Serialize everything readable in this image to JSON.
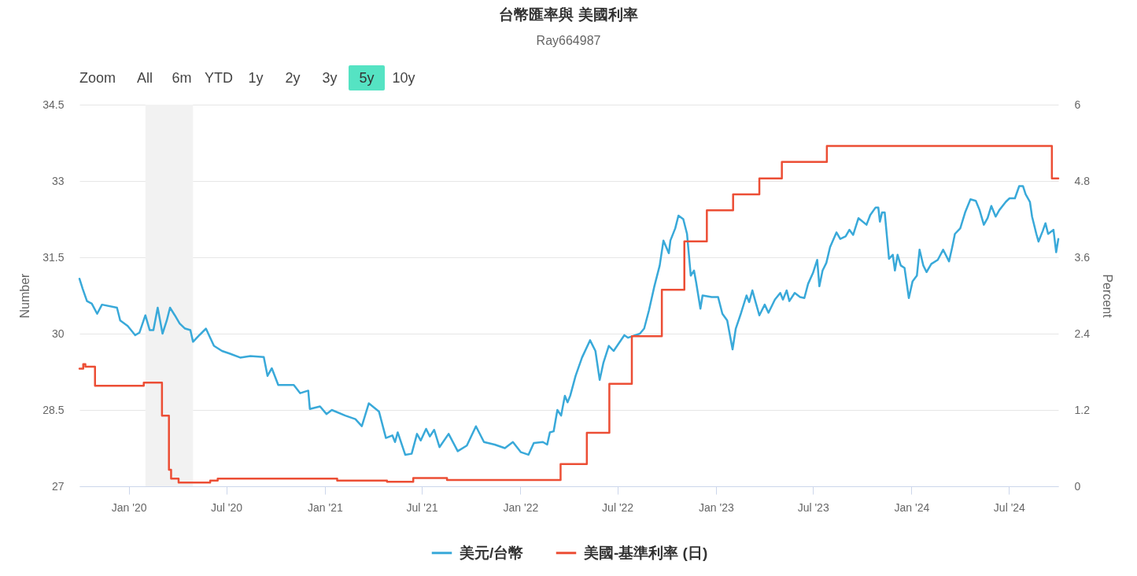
{
  "chart_data": {
    "type": "line",
    "title": "台幣匯率與 美國利率",
    "subtitle": "Ray664987",
    "annotations": [
      "Zoom",
      "All",
      "6m",
      "YTD",
      "1y",
      "2y",
      "3y",
      "5y",
      "10y"
    ],
    "ylabel": "Number",
    "y2label": "Percent",
    "xlim": [
      "2019-10-01",
      "2024-10-01"
    ],
    "xticks": [
      {
        "value": "2020-01-01",
        "label": "Jan '20"
      },
      {
        "value": "2020-07-01",
        "label": "Jul '20"
      },
      {
        "value": "2021-01-01",
        "label": "Jan '21"
      },
      {
        "value": "2021-07-01",
        "label": "Jul '21"
      },
      {
        "value": "2022-01-01",
        "label": "Jan '22"
      },
      {
        "value": "2022-07-01",
        "label": "Jul '22"
      },
      {
        "value": "2023-01-01",
        "label": "Jan '23"
      },
      {
        "value": "2023-07-01",
        "label": "Jul '23"
      },
      {
        "value": "2024-01-01",
        "label": "Jan '24"
      },
      {
        "value": "2024-07-01",
        "label": "Jul '24"
      }
    ],
    "ylim": [
      27,
      34.5
    ],
    "yticks": [
      27,
      28.5,
      30,
      31.5,
      33,
      34.5
    ],
    "y2lim": [
      0,
      6
    ],
    "y2ticks": [
      0,
      1.2,
      2.4,
      3.6,
      4.8,
      6
    ],
    "grid": "y",
    "legend": "bottom",
    "bands": [
      {
        "axis": "x",
        "from": "2020-02-01",
        "to": "2020-04-30",
        "color": "#f2f2f2"
      }
    ],
    "series": [
      {
        "name": "美元/台幣",
        "color": "#39a9d9",
        "axis": "y",
        "x": [
          "2019-10-01",
          "2019-10-07",
          "2019-10-15",
          "2019-10-24",
          "2019-11-03",
          "2019-11-12",
          "2019-12-10",
          "2019-12-16",
          "2019-12-30",
          "2020-01-13",
          "2020-01-21",
          "2020-02-01",
          "2020-02-09",
          "2020-02-16",
          "2020-02-24",
          "2020-03-04",
          "2020-03-12",
          "2020-03-18",
          "2020-03-27",
          "2020-04-05",
          "2020-04-15",
          "2020-04-25",
          "2020-04-30",
          "2020-05-10",
          "2020-05-24",
          "2020-06-08",
          "2020-06-23",
          "2020-07-07",
          "2020-07-27",
          "2020-08-15",
          "2020-09-09",
          "2020-09-16",
          "2020-09-24",
          "2020-10-06",
          "2020-10-16",
          "2020-11-04",
          "2020-11-16",
          "2020-12-01",
          "2020-12-04",
          "2020-12-23",
          "2021-01-04",
          "2021-01-14",
          "2021-02-08",
          "2021-02-27",
          "2021-03-11",
          "2021-03-24",
          "2021-04-12",
          "2021-04-25",
          "2021-05-07",
          "2021-05-12",
          "2021-05-17",
          "2021-05-31",
          "2021-06-12",
          "2021-06-22",
          "2021-06-29",
          "2021-07-09",
          "2021-07-16",
          "2021-07-24",
          "2021-08-03",
          "2021-08-20",
          "2021-09-06",
          "2021-09-23",
          "2021-10-10",
          "2021-10-25",
          "2021-11-14",
          "2021-12-03",
          "2021-12-18",
          "2022-01-02",
          "2022-01-16",
          "2022-01-26",
          "2022-02-12",
          "2022-02-20",
          "2022-02-25",
          "2022-03-04",
          "2022-03-11",
          "2022-03-18",
          "2022-03-25",
          "2022-03-30",
          "2022-04-04",
          "2022-04-14",
          "2022-04-26",
          "2022-05-11",
          "2022-05-21",
          "2022-05-29",
          "2022-06-05",
          "2022-06-15",
          "2022-06-24",
          "2022-07-14",
          "2022-07-21",
          "2022-08-12",
          "2022-08-20",
          "2022-08-29",
          "2022-09-08",
          "2022-09-18",
          "2022-09-25",
          "2022-10-05",
          "2022-10-08",
          "2022-10-17",
          "2022-10-23",
          "2022-11-01",
          "2022-11-08",
          "2022-11-15",
          "2022-11-21",
          "2022-11-25",
          "2022-12-03",
          "2022-12-07",
          "2022-12-24",
          "2023-01-05",
          "2023-01-13",
          "2023-01-22",
          "2023-02-01",
          "2023-02-07",
          "2023-02-17",
          "2023-02-27",
          "2023-03-04",
          "2023-03-10",
          "2023-03-16",
          "2023-03-23",
          "2023-04-02",
          "2023-04-09",
          "2023-04-21",
          "2023-05-01",
          "2023-05-06",
          "2023-05-13",
          "2023-05-18",
          "2023-05-28",
          "2023-06-07",
          "2023-06-15",
          "2023-06-22",
          "2023-07-01",
          "2023-07-09",
          "2023-07-13",
          "2023-07-19",
          "2023-07-26",
          "2023-08-02",
          "2023-08-14",
          "2023-08-21",
          "2023-08-31",
          "2023-09-07",
          "2023-09-14",
          "2023-09-24",
          "2023-10-09",
          "2023-10-16",
          "2023-10-26",
          "2023-10-31",
          "2023-11-03",
          "2023-11-07",
          "2023-11-12",
          "2023-11-20",
          "2023-11-27",
          "2023-12-01",
          "2023-12-06",
          "2023-12-12",
          "2023-12-19",
          "2023-12-27",
          "2024-01-03",
          "2024-01-11",
          "2024-01-16",
          "2024-01-23",
          "2024-01-29",
          "2024-02-07",
          "2024-02-19",
          "2024-02-29",
          "2024-03-11",
          "2024-03-17",
          "2024-03-22",
          "2024-04-01",
          "2024-04-10",
          "2024-04-20",
          "2024-04-30",
          "2024-05-07",
          "2024-05-15",
          "2024-05-22",
          "2024-05-29",
          "2024-06-06",
          "2024-06-13",
          "2024-06-25",
          "2024-07-02",
          "2024-07-12",
          "2024-07-20",
          "2024-07-27",
          "2024-08-01",
          "2024-08-09",
          "2024-08-13",
          "2024-08-21",
          "2024-08-25",
          "2024-09-02",
          "2024-09-07",
          "2024-09-12",
          "2024-09-22",
          "2024-09-27",
          "2024-10-01"
        ],
        "values": [
          31.08,
          30.88,
          30.64,
          30.59,
          30.39,
          30.57,
          30.51,
          30.26,
          30.15,
          29.97,
          30.02,
          30.36,
          30.07,
          30.07,
          30.51,
          30.0,
          30.26,
          30.51,
          30.36,
          30.2,
          30.1,
          30.07,
          29.84,
          29.95,
          30.1,
          29.76,
          29.66,
          29.61,
          29.53,
          29.56,
          29.54,
          29.17,
          29.32,
          28.99,
          28.99,
          28.99,
          28.83,
          28.88,
          28.52,
          28.57,
          28.42,
          28.5,
          28.39,
          28.32,
          28.18,
          28.63,
          28.47,
          27.95,
          28.0,
          27.87,
          28.06,
          27.62,
          27.64,
          28.03,
          27.9,
          28.13,
          27.98,
          28.11,
          27.77,
          28.03,
          27.69,
          27.8,
          28.18,
          27.87,
          27.82,
          27.75,
          27.87,
          27.67,
          27.62,
          27.85,
          27.87,
          27.82,
          28.06,
          28.08,
          28.5,
          28.39,
          28.78,
          28.65,
          28.78,
          29.17,
          29.53,
          29.87,
          29.66,
          29.09,
          29.43,
          29.76,
          29.66,
          29.97,
          29.92,
          30.0,
          30.1,
          30.46,
          30.93,
          31.34,
          31.83,
          31.58,
          31.83,
          32.07,
          32.32,
          32.25,
          31.96,
          31.14,
          31.24,
          31.01,
          30.49,
          30.75,
          30.72,
          30.72,
          30.39,
          30.26,
          29.69,
          30.1,
          30.41,
          30.75,
          30.62,
          30.85,
          30.62,
          30.36,
          30.57,
          30.41,
          30.67,
          30.8,
          30.67,
          30.85,
          30.64,
          30.8,
          30.72,
          30.7,
          30.98,
          31.19,
          31.45,
          30.93,
          31.24,
          31.39,
          31.7,
          31.99,
          31.86,
          31.91,
          32.04,
          31.94,
          32.27,
          32.14,
          32.33,
          32.48,
          32.48,
          32.2,
          32.38,
          32.38,
          31.47,
          31.55,
          31.24,
          31.55,
          31.34,
          31.29,
          30.7,
          31.03,
          31.14,
          31.65,
          31.34,
          31.21,
          31.37,
          31.45,
          31.65,
          31.42,
          31.7,
          31.96,
          32.07,
          32.38,
          32.64,
          32.61,
          32.43,
          32.14,
          32.27,
          32.51,
          32.3,
          32.43,
          32.59,
          32.66,
          32.66,
          32.9,
          32.9,
          32.74,
          32.59,
          32.3,
          31.96,
          31.81,
          32.02,
          32.17,
          31.96,
          32.04,
          31.6,
          31.86
        ]
      },
      {
        "name": "美國-基準利率 (日)",
        "color": "#ec4e35",
        "type": "step",
        "axis": "y2",
        "x": [
          "2019-10-01",
          "2019-10-08",
          "2019-10-12",
          "2019-10-30",
          "2020-01-29",
          "2020-03-03",
          "2020-03-16",
          "2020-03-20",
          "2020-04-03",
          "2020-06-01",
          "2020-06-15",
          "2021-01-24",
          "2021-04-27",
          "2021-06-15",
          "2021-08-17",
          "2022-03-17",
          "2022-05-05",
          "2022-06-16",
          "2022-07-28",
          "2022-09-22",
          "2022-11-03",
          "2022-12-15",
          "2023-02-02",
          "2023-03-23",
          "2023-05-04",
          "2023-07-27",
          "2024-09-19",
          "2024-10-01"
        ],
        "values": [
          1.85,
          1.92,
          1.88,
          1.58,
          1.63,
          1.11,
          0.26,
          0.12,
          0.06,
          0.09,
          0.12,
          0.09,
          0.07,
          0.13,
          0.1,
          0.35,
          0.84,
          1.61,
          2.36,
          3.09,
          3.85,
          4.34,
          4.59,
          4.84,
          5.1,
          5.35,
          4.84,
          4.84
        ]
      }
    ]
  }
}
